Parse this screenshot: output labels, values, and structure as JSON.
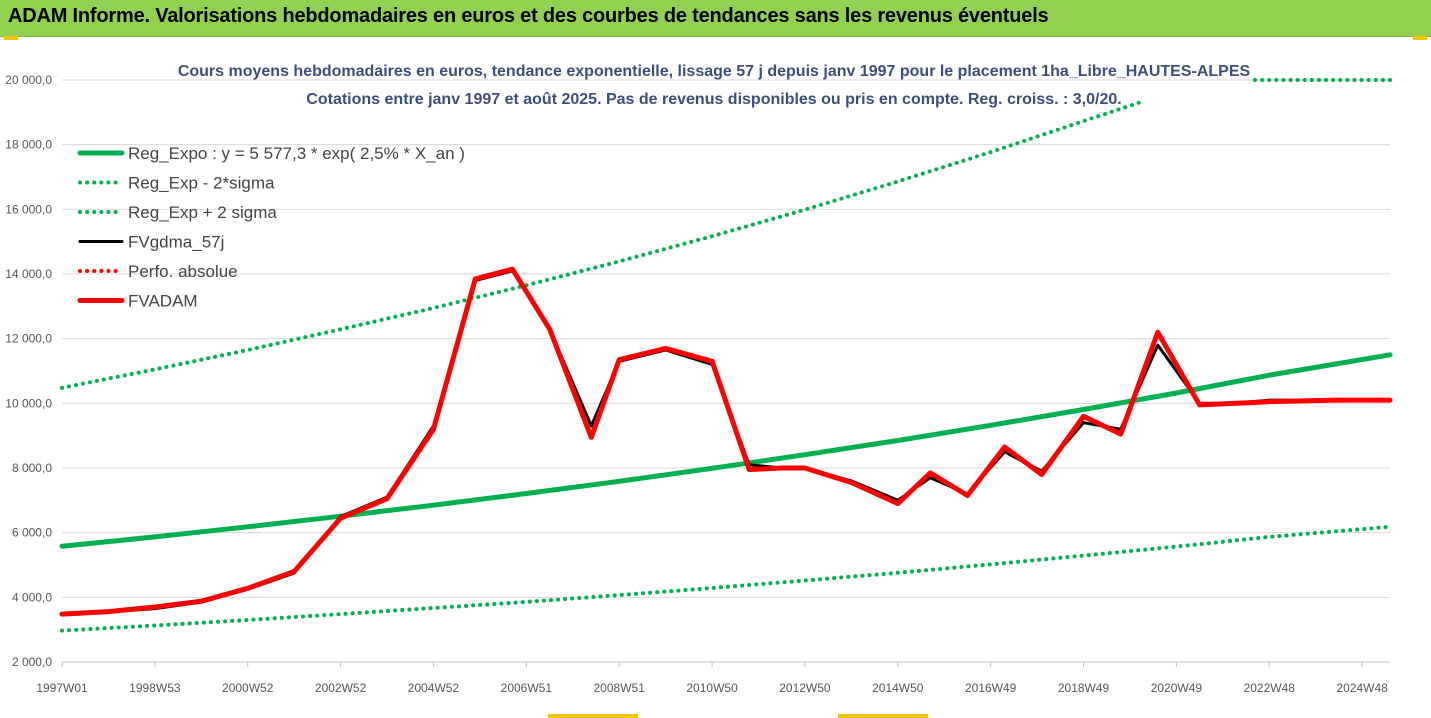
{
  "banner": {
    "title": "ADAM Informe. Valorisations hebdomadaires en euros et des courbes de tendances sans les revenus éventuels"
  },
  "colors": {
    "banner_bg": "#92d050",
    "reg_expo": "#00b050",
    "fvgdma": "#000000",
    "fvadam": "#ff0000",
    "title_text": "#3b4f7d",
    "grid": "#d9d9d9"
  },
  "chart_data": {
    "type": "line",
    "title_line1": "Cours moyens hebdomadaires en euros, tendance exponentielle, lissage 57 j depuis janv 1997 pour le placement 1ha_Libre_HAUTES-ALPES",
    "title_line2": "Cotations entre janv 1997 et août 2025. Pas de revenus disponibles ou pris en compte. Reg. croiss. : 3,0/20.",
    "xlabel": "",
    "ylabel": "",
    "xlim": [
      1997.0,
      2025.6
    ],
    "ylim": [
      2000,
      20000
    ],
    "grid": "horizontal",
    "legend_position": "top-left",
    "y_ticks": [
      "2 000,0",
      "4 000,0",
      "6 000,0",
      "8 000,0",
      "10 000,0",
      "12 000,0",
      "14 000,0",
      "16 000,0",
      "18 000,0",
      "20 000,0"
    ],
    "y_tick_values": [
      2000,
      4000,
      6000,
      8000,
      10000,
      12000,
      14000,
      16000,
      18000,
      20000
    ],
    "x_ticks": [
      "1997W01",
      "1998W53",
      "2000W52",
      "2002W52",
      "2004W52",
      "2006W51",
      "2008W51",
      "2010W50",
      "2012W50",
      "2014W50",
      "2016W49",
      "2018W49",
      "2020W49",
      "2022W48",
      "2024W48"
    ],
    "x_tick_values": [
      1997.0,
      1999.0,
      2001.0,
      2003.0,
      2005.0,
      2007.0,
      2009.0,
      2011.0,
      2013.0,
      2015.0,
      2017.0,
      2019.0,
      2021.0,
      2023.0,
      2025.0
    ],
    "legend": [
      {
        "label": "Reg_Expo : y = 5 577,3 * exp( 2,5% *  X_an )",
        "style": "solid-thick",
        "color": "#00b050"
      },
      {
        "label": "Reg_Exp - 2*sigma",
        "style": "dotted",
        "color": "#00b050"
      },
      {
        "label": "Reg_Exp + 2 sigma",
        "style": "dotted",
        "color": "#00b050"
      },
      {
        "label": "FVgdma_57j",
        "style": "solid",
        "color": "#000000"
      },
      {
        "label": "Perfo. absolue",
        "style": "dotted",
        "color": "#ff0000"
      },
      {
        "label": "FVADAM",
        "style": "solid-thick",
        "color": "#ff0000"
      }
    ],
    "series": [
      {
        "name": "Reg_Expo : y = 5 577,3 * exp( 2,5% *  X_an )",
        "x": [
          1997.0,
          1999.0,
          2001.0,
          2003.0,
          2005.0,
          2007.0,
          2009.0,
          2011.0,
          2013.0,
          2015.0,
          2017.0,
          2019.0,
          2021.0,
          2023.0,
          2025.6
        ],
        "y": [
          5580,
          5870,
          6180,
          6510,
          6850,
          7210,
          7590,
          7990,
          8410,
          8850,
          9320,
          9810,
          10320,
          10870,
          11500
        ]
      },
      {
        "name": "Reg_Exp - 2*sigma",
        "x": [
          1997.0,
          1999.0,
          2001.0,
          2003.0,
          2005.0,
          2007.0,
          2009.0,
          2011.0,
          2013.0,
          2015.0,
          2017.0,
          2019.0,
          2021.0,
          2023.0,
          2025.6
        ],
        "y": [
          2970,
          3130,
          3300,
          3480,
          3670,
          3860,
          4070,
          4290,
          4520,
          4760,
          5020,
          5290,
          5570,
          5870,
          6180
        ]
      },
      {
        "name": "Reg_Exp + 2 sigma",
        "x": [
          1997.0,
          1999.0,
          2001.0,
          2003.0,
          2005.0,
          2007.0,
          2009.0,
          2011.0,
          2013.0,
          2015.0,
          2017.0,
          2019.0,
          2020.2
        ],
        "y": [
          10480,
          11050,
          11650,
          12290,
          12950,
          13650,
          14390,
          15170,
          15990,
          16860,
          17770,
          18730,
          19300
        ]
      },
      {
        "name": "FVgdma_57j",
        "x": [
          1997.0,
          1998.0,
          1999.0,
          2000.0,
          2001.0,
          2002.0,
          2003.0,
          2004.0,
          2005.0,
          2005.9,
          2006.7,
          2007.5,
          2008.4,
          2009.0,
          2010.0,
          2011.0,
          2011.8,
          2012.5,
          2013.0,
          2014.0,
          2015.0,
          2015.7,
          2016.5,
          2017.3,
          2018.1,
          2019.0,
          2019.8,
          2020.6,
          2021.5,
          2022.3,
          2023.0,
          2023.8,
          2024.5,
          2025.6
        ],
        "y": [
          3500,
          3550,
          3650,
          3850,
          4250,
          4750,
          6500,
          7100,
          9300,
          13800,
          14100,
          12300,
          9300,
          11300,
          11650,
          11200,
          8100,
          8000,
          8000,
          7600,
          7000,
          7700,
          7200,
          8500,
          7900,
          9400,
          9200,
          11800,
          10000,
          10000,
          10100,
          10100,
          10100,
          10100
        ]
      },
      {
        "name": "FVADAM",
        "x": [
          1997.0,
          1998.0,
          1999.0,
          2000.0,
          2001.0,
          2002.0,
          2003.0,
          2004.0,
          2005.0,
          2005.9,
          2006.7,
          2007.5,
          2008.4,
          2009.0,
          2010.0,
          2011.0,
          2011.8,
          2012.5,
          2013.0,
          2014.0,
          2015.0,
          2015.7,
          2016.5,
          2017.3,
          2018.1,
          2019.0,
          2019.8,
          2020.6,
          2021.5,
          2022.3,
          2023.0,
          2023.8,
          2024.5,
          2025.6
        ],
        "y": [
          3480,
          3560,
          3700,
          3880,
          4280,
          4800,
          6450,
          7050,
          9200,
          13850,
          14150,
          12300,
          8950,
          11350,
          11700,
          11300,
          7950,
          8000,
          8000,
          7550,
          6900,
          7850,
          7150,
          8650,
          7800,
          9600,
          9050,
          12200,
          9950,
          10000,
          10050,
          10080,
          10100,
          10100
        ]
      }
    ]
  }
}
